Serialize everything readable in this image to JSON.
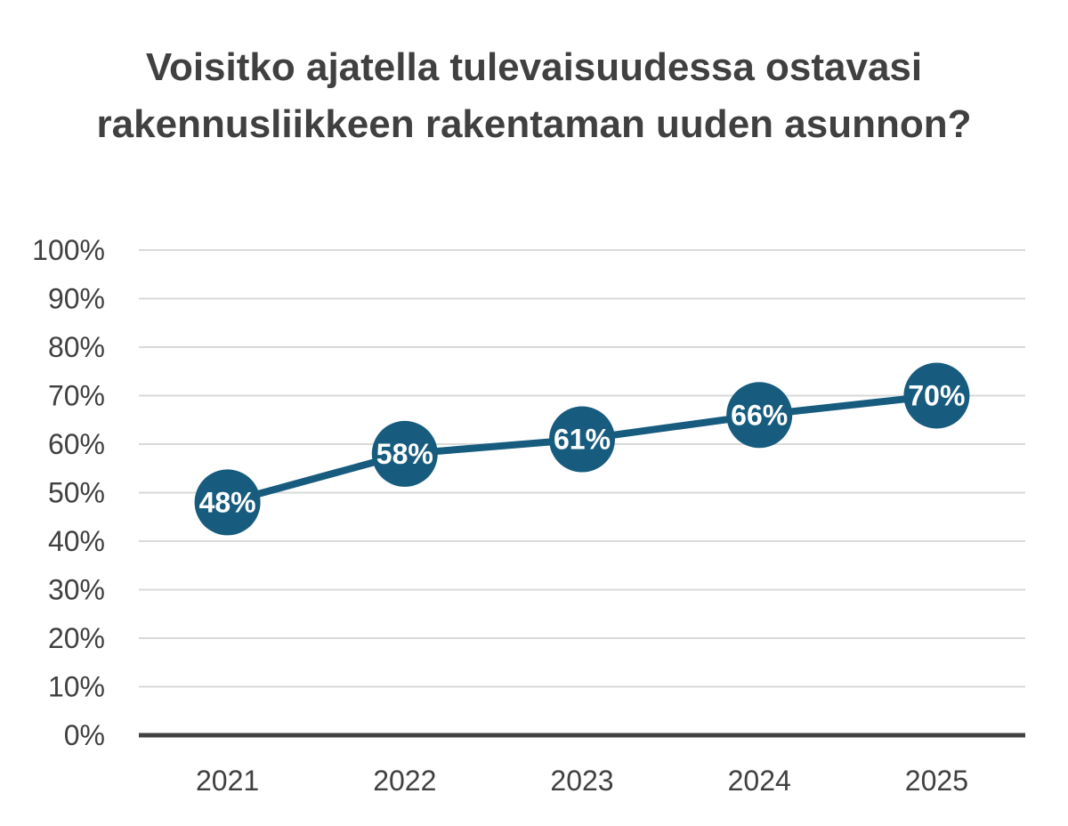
{
  "chart_data": {
    "type": "line",
    "title": "Voisitko ajatella tulevaisuudessa ostavasi rakennusliikkeen rakentaman uuden asunnon?",
    "categories": [
      "2021",
      "2022",
      "2023",
      "2024",
      "2025"
    ],
    "values": [
      48,
      58,
      61,
      66,
      70
    ],
    "data_labels": [
      "48%",
      "58%",
      "61%",
      "66%",
      "70%"
    ],
    "y_ticks": [
      "0%",
      "10%",
      "20%",
      "30%",
      "40%",
      "50%",
      "60%",
      "70%",
      "80%",
      "90%",
      "100%"
    ],
    "ylim": [
      0,
      100
    ],
    "xlabel": "",
    "ylabel": "",
    "grid": true,
    "legend": "none",
    "colors": {
      "series": "#175c7e",
      "gridline": "#d9d9d9",
      "axis": "#404040",
      "label_text": "#ffffff"
    }
  }
}
